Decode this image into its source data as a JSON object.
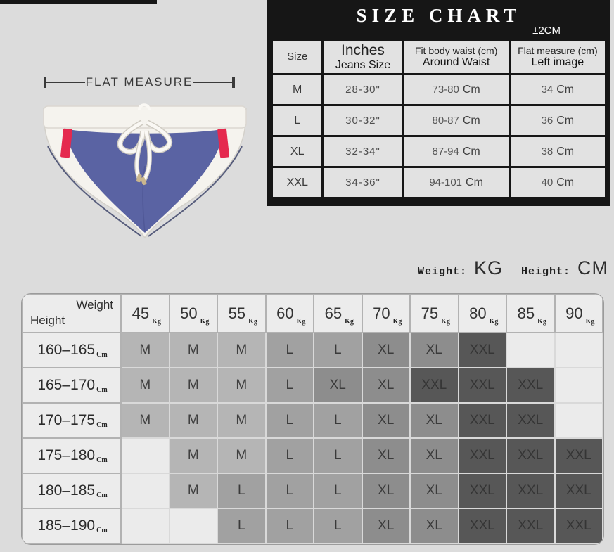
{
  "page": {
    "background": "#dcdcdc",
    "top_bar_color": "#161616"
  },
  "flat_measure": {
    "label": "FLAT MEASURE"
  },
  "product": {
    "description": "white swim briefs with blue front panel, red side stripes and white drawstring",
    "colors": {
      "body_white": "#f5f3ee",
      "panel_blue": "#5a63a3",
      "panel_blue_dark": "#4a5190",
      "stripe_red": "#e5294e",
      "piping_navy": "#40466b",
      "cord_white": "#faf8f4",
      "cord_shadow": "#cfcbc2",
      "metal_tip": "#c9b68e"
    }
  },
  "size_chart": {
    "title": "SIZE CHART",
    "tolerance": "±2CM",
    "header": {
      "col_size": "Size",
      "col_inches_line1": "Inches",
      "col_inches_line2": "Jeans Size",
      "col_waist_line1": "Fit body waist (cm)",
      "col_waist_line2": "Around Waist",
      "col_flat_line1": "Flat measure (cm)",
      "col_flat_line2": "Left image"
    },
    "rows": [
      {
        "size": "M",
        "inches": "28-30\"",
        "waist_range": "73-80",
        "waist_unit": "Cm",
        "flat_value": "34",
        "flat_unit": "Cm"
      },
      {
        "size": "L",
        "inches": "30-32\"",
        "waist_range": "80-87",
        "waist_unit": "Cm",
        "flat_value": "36",
        "flat_unit": "Cm"
      },
      {
        "size": "XL",
        "inches": "32-34\"",
        "waist_range": "87-94",
        "waist_unit": "Cm",
        "flat_value": "38",
        "flat_unit": "Cm"
      },
      {
        "size": "XXL",
        "inches": "34-36\"",
        "waist_range": "94-101",
        "waist_unit": "Cm",
        "flat_value": "40",
        "flat_unit": "Cm"
      }
    ]
  },
  "legend": {
    "weight_label": "Weight:",
    "weight_unit": "KG",
    "height_label": "Height:",
    "height_unit": "CM"
  },
  "matrix": {
    "corner_top": "Weight",
    "corner_bottom": "Height",
    "weight_unit": "Kg",
    "height_unit": "Cm",
    "weights": [
      "45",
      "50",
      "55",
      "60",
      "65",
      "70",
      "75",
      "80",
      "85",
      "90"
    ],
    "heights": [
      "160–165",
      "165–170",
      "170–175",
      "175–180",
      "180–185",
      "185–190"
    ],
    "cells": [
      [
        "M",
        "M",
        "M",
        "L",
        "L",
        "XL",
        "XL",
        "XXL",
        "",
        ""
      ],
      [
        "M",
        "M",
        "M",
        "L",
        "XL",
        "XL",
        "XXL",
        "XXL",
        "XXL",
        ""
      ],
      [
        "M",
        "M",
        "M",
        "L",
        "L",
        "XL",
        "XL",
        "XXL",
        "XXL",
        ""
      ],
      [
        "",
        "M",
        "M",
        "L",
        "L",
        "XL",
        "XL",
        "XXL",
        "XXL",
        "XXL"
      ],
      [
        "",
        "M",
        "L",
        "L",
        "L",
        "XL",
        "XL",
        "XXL",
        "XXL",
        "XXL"
      ],
      [
        "",
        "",
        "L",
        "L",
        "L",
        "XL",
        "XL",
        "XXL",
        "XXL",
        "XXL"
      ]
    ],
    "cell_styles": {
      "M": {
        "bg": "#b5b5b5",
        "fg": "#3f3f3f"
      },
      "L": {
        "bg": "#a1a1a1",
        "fg": "#3a3a3a"
      },
      "XL": {
        "bg": "#8d8d8d",
        "fg": "#3b3b3b"
      },
      "XXL": {
        "bg": "#575757",
        "fg": "#353535"
      },
      "empty": {
        "bg": "#ebebeb",
        "fg": "#3f3f3f"
      }
    }
  },
  "chart_data": [
    {
      "type": "table",
      "title": "SIZE CHART",
      "note": "±2CM",
      "columns": [
        "Size",
        "Inches / Jeans Size",
        "Fit body waist (cm) / Around Waist",
        "Flat measure (cm) / Left image"
      ],
      "rows": [
        [
          "M",
          "28-30\"",
          "73-80 Cm",
          "34 Cm"
        ],
        [
          "L",
          "30-32\"",
          "80-87 Cm",
          "36 Cm"
        ],
        [
          "XL",
          "32-34\"",
          "87-94 Cm",
          "38 Cm"
        ],
        [
          "XXL",
          "34-36\"",
          "94-101 Cm",
          "40 Cm"
        ]
      ]
    },
    {
      "type": "table",
      "title": "Recommended size by weight (KG) and height (CM)",
      "x_label": "Weight (Kg)",
      "y_label": "Height (Cm)",
      "weights_kg": [
        45,
        50,
        55,
        60,
        65,
        70,
        75,
        80,
        85,
        90
      ],
      "heights_cm": [
        "160-165",
        "165-170",
        "170-175",
        "175-180",
        "180-185",
        "185-190"
      ],
      "cells": [
        [
          "M",
          "M",
          "M",
          "L",
          "L",
          "XL",
          "XL",
          "XXL",
          "",
          ""
        ],
        [
          "M",
          "M",
          "M",
          "L",
          "XL",
          "XL",
          "XXL",
          "XXL",
          "XXL",
          ""
        ],
        [
          "M",
          "M",
          "M",
          "L",
          "L",
          "XL",
          "XL",
          "XXL",
          "XXL",
          ""
        ],
        [
          "",
          "M",
          "M",
          "L",
          "L",
          "XL",
          "XL",
          "XXL",
          "XXL",
          "XXL"
        ],
        [
          "",
          "M",
          "L",
          "L",
          "L",
          "XL",
          "XL",
          "XXL",
          "XXL",
          "XXL"
        ],
        [
          "",
          "",
          "L",
          "L",
          "L",
          "XL",
          "XL",
          "XXL",
          "XXL",
          "XXL"
        ]
      ]
    }
  ]
}
